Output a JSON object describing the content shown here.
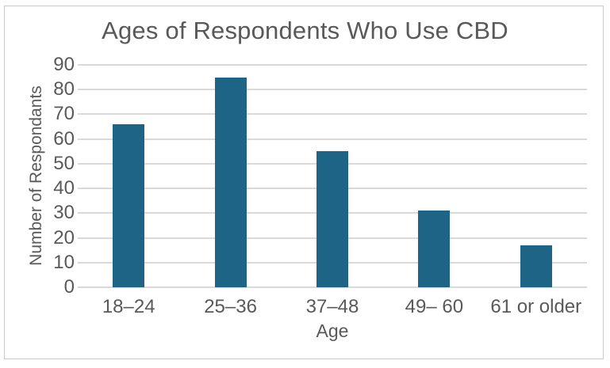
{
  "window": {
    "background_color": "#FFFFFF",
    "frame_border_color": "#C9CBCC"
  },
  "chart_data": {
    "type": "bar",
    "title": "Ages of Respondents Who Use CBD",
    "xlabel": "Age",
    "ylabel": "Number of Respondants",
    "categories": [
      "18–24",
      "25–36",
      "37–48",
      "49– 60",
      "61 or older"
    ],
    "values": [
      66,
      85,
      55,
      31,
      17
    ],
    "ylim": [
      0,
      90
    ],
    "yticks": [
      0,
      10,
      20,
      30,
      40,
      50,
      60,
      70,
      80,
      90
    ],
    "grid": true,
    "legend": "none",
    "bar_color": "#1D6486",
    "gridline_color": "#D9D9D9",
    "text_color": "#595959"
  }
}
